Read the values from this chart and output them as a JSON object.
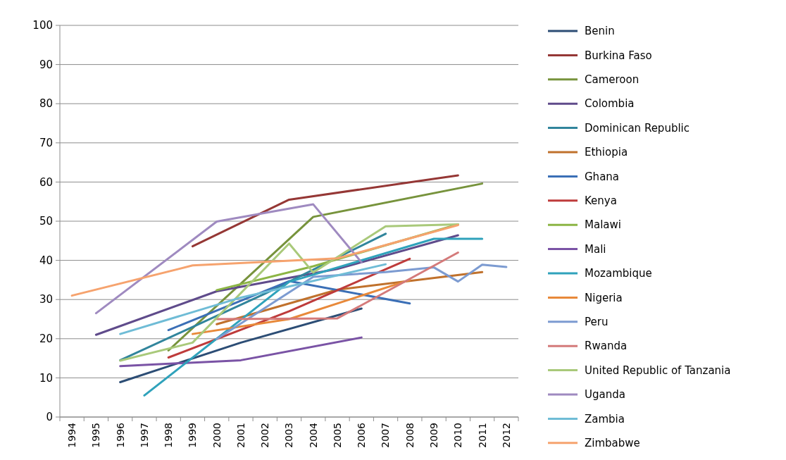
{
  "chart_data": {
    "type": "line",
    "categories": [
      "1994",
      "1995",
      "1996",
      "1997",
      "1998",
      "1999",
      "2000",
      "2001",
      "2002",
      "2003",
      "2004",
      "2005",
      "2006",
      "2007",
      "2008",
      "2009",
      "2010",
      "2011",
      "2012"
    ],
    "ylim": [
      0,
      100
    ],
    "yticks": [
      0,
      10,
      20,
      30,
      40,
      50,
      60,
      70,
      80,
      90,
      100
    ],
    "grid": "y",
    "legend": "right",
    "line_style": "solid",
    "marker": "none",
    "series": [
      {
        "name": "Benin",
        "color": "#2c4d75",
        "values": [
          null,
          null,
          8.9,
          null,
          null,
          null,
          null,
          19,
          null,
          null,
          null,
          null,
          27.7,
          null,
          null,
          null,
          null,
          null,
          null
        ]
      },
      {
        "name": "Burkina Faso",
        "color": "#953735",
        "values": [
          null,
          null,
          null,
          null,
          null,
          43.6,
          null,
          null,
          null,
          55.5,
          null,
          null,
          null,
          null,
          null,
          null,
          61.7,
          null,
          null
        ]
      },
      {
        "name": "Cameroon",
        "color": "#77933c",
        "values": [
          null,
          null,
          null,
          null,
          17,
          null,
          null,
          null,
          null,
          null,
          51.1,
          null,
          null,
          null,
          null,
          null,
          null,
          59.6,
          null
        ]
      },
      {
        "name": "Colombia",
        "color": "#5f4b8b",
        "values": [
          null,
          21,
          null,
          null,
          null,
          null,
          32.1,
          null,
          null,
          null,
          null,
          37.8,
          null,
          null,
          null,
          null,
          46.4,
          null,
          null
        ]
      },
      {
        "name": "Dominican Republic",
        "color": "#31859c",
        "values": [
          null,
          null,
          14.5,
          null,
          null,
          null,
          null,
          null,
          31.5,
          null,
          null,
          null,
          null,
          46.8,
          null,
          null,
          null,
          null,
          null
        ]
      },
      {
        "name": "Ethiopia",
        "color": "#c0712c",
        "values": [
          null,
          null,
          null,
          null,
          null,
          null,
          23.7,
          null,
          null,
          null,
          null,
          32.5,
          null,
          null,
          null,
          null,
          null,
          37,
          null
        ]
      },
      {
        "name": "Ghana",
        "color": "#3b6fb6",
        "values": [
          null,
          null,
          null,
          null,
          22.2,
          null,
          null,
          null,
          null,
          34.7,
          null,
          null,
          null,
          null,
          29,
          null,
          null,
          null,
          null
        ]
      },
      {
        "name": "Kenya",
        "color": "#be3b3b",
        "values": [
          null,
          null,
          null,
          null,
          15.2,
          null,
          null,
          null,
          null,
          27,
          null,
          null,
          null,
          null,
          40.4,
          null,
          null,
          null,
          null
        ]
      },
      {
        "name": "Malawi",
        "color": "#8cb545",
        "values": [
          null,
          null,
          null,
          null,
          null,
          null,
          32.4,
          null,
          null,
          null,
          38.5,
          null,
          null,
          null,
          null,
          null,
          49.2,
          null,
          null
        ]
      },
      {
        "name": "Mali",
        "color": "#7a53a5",
        "values": [
          null,
          null,
          13,
          null,
          null,
          null,
          null,
          14.5,
          null,
          null,
          null,
          null,
          20.3,
          null,
          null,
          null,
          null,
          null,
          null
        ]
      },
      {
        "name": "Mozambique",
        "color": "#2fa2bb",
        "values": [
          null,
          null,
          null,
          5.5,
          null,
          null,
          null,
          null,
          null,
          34.5,
          null,
          null,
          null,
          null,
          null,
          45.5,
          null,
          45.5,
          null
        ]
      },
      {
        "name": "Nigeria",
        "color": "#e8893a",
        "values": [
          null,
          null,
          null,
          null,
          null,
          21.2,
          null,
          null,
          null,
          25,
          null,
          null,
          null,
          null,
          35,
          null,
          null,
          null,
          null
        ]
      },
      {
        "name": "Peru",
        "color": "#7c9bd1",
        "values": [
          null,
          null,
          null,
          null,
          null,
          null,
          19.9,
          null,
          null,
          null,
          35.8,
          null,
          null,
          37,
          null,
          38.2,
          34.6,
          38.9,
          38.3
        ]
      },
      {
        "name": "Rwanda",
        "color": "#d47a7a",
        "values": [
          null,
          null,
          null,
          null,
          null,
          null,
          25,
          null,
          null,
          null,
          null,
          25.2,
          null,
          null,
          null,
          null,
          42,
          null,
          null
        ]
      },
      {
        "name": "United Republic of Tanzania",
        "color": "#a9c97a",
        "values": [
          null,
          null,
          14.4,
          null,
          null,
          19,
          null,
          null,
          null,
          44.3,
          36.9,
          null,
          null,
          48.7,
          null,
          null,
          49.2,
          null,
          null
        ]
      },
      {
        "name": "Uganda",
        "color": "#9f8ac0",
        "values": [
          null,
          26.5,
          null,
          null,
          null,
          null,
          49.9,
          null,
          null,
          null,
          54.3,
          null,
          39.5,
          null,
          null,
          null,
          null,
          null,
          null
        ]
      },
      {
        "name": "Zambia",
        "color": "#6fbcd6",
        "values": [
          null,
          null,
          21.2,
          null,
          null,
          null,
          null,
          30.5,
          null,
          null,
          null,
          null,
          null,
          39,
          null,
          null,
          null,
          null,
          null
        ]
      },
      {
        "name": "Zimbabwe",
        "color": "#f6a36e",
        "values": [
          31,
          null,
          null,
          null,
          null,
          38.7,
          null,
          null,
          null,
          null,
          null,
          40.5,
          null,
          null,
          null,
          null,
          49,
          null,
          null
        ]
      }
    ]
  }
}
